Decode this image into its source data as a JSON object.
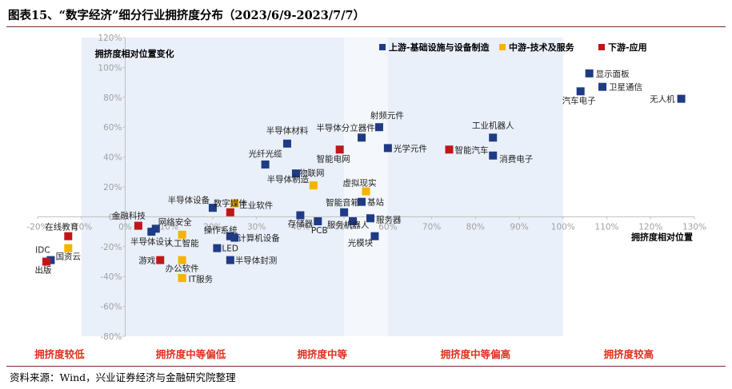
{
  "figure": {
    "title": "图表15、“数字经济”细分行业拥挤度分布（2023/6/9-2023/7/7）",
    "source": "资料来源：Wind，兴业证券经济与金融研究院整理"
  },
  "chart_data": {
    "type": "scatter",
    "title": "图表15、“数字经济”细分行业拥挤度分布（2023/6/9-2023/7/7）",
    "annotation": "拥挤度相对位置变化",
    "xlabel": "拥挤度相对位置",
    "ylabel": "",
    "xlim": [
      -20,
      130
    ],
    "ylim": [
      -80,
      120
    ],
    "x_ticks": [
      "-20%",
      "-10%",
      "0%",
      "10%",
      "20%",
      "30%",
      "40%",
      "50%",
      "60%",
      "70%",
      "80%",
      "90%",
      "100%",
      "110%",
      "120%",
      "130%"
    ],
    "y_ticks": [
      "-80%",
      "-60%",
      "-40%",
      "-20%",
      "0%",
      "20%",
      "40%",
      "60%",
      "80%",
      "100%",
      "120%"
    ],
    "grid": false,
    "legend_position": "top-right",
    "zones": [
      "拥挤度较低",
      "拥挤度中等偏低",
      "拥挤度中等",
      "拥挤度中等偏高",
      "拥挤度较高"
    ],
    "series": [
      {
        "name": "上游-基础设施与设备制造",
        "color": "#1f3b85",
        "points": [
          {
            "label": "显示面板",
            "x": 106,
            "y": 96
          },
          {
            "label": "卫星通信",
            "x": 109,
            "y": 87
          },
          {
            "label": "汽车电子",
            "x": 104,
            "y": 84
          },
          {
            "label": "无人机",
            "x": 127,
            "y": 79
          },
          {
            "label": "工业机器人",
            "x": 84,
            "y": 53
          },
          {
            "label": "消费电子",
            "x": 84,
            "y": 41
          },
          {
            "label": "射频元件",
            "x": 58,
            "y": 60
          },
          {
            "label": "半导体分立器件",
            "x": 54,
            "y": 53
          },
          {
            "label": "光学元件",
            "x": 60,
            "y": 46
          },
          {
            "label": "半导体材料",
            "x": 37,
            "y": 49
          },
          {
            "label": "光纤光缆",
            "x": 32,
            "y": 35
          },
          {
            "label": "半导体制造",
            "x": 39,
            "y": 29
          },
          {
            "label": "半导体设备",
            "x": 20,
            "y": 6
          },
          {
            "label": "存储器",
            "x": 40,
            "y": 1
          },
          {
            "label": "PCB",
            "x": 44,
            "y": -3
          },
          {
            "label": "智能音箱",
            "x": 50,
            "y": 3
          },
          {
            "label": "基站",
            "x": 54,
            "y": 10
          },
          {
            "label": "服务器",
            "x": 56,
            "y": -1
          },
          {
            "label": "服务机器人",
            "x": 52,
            "y": -3
          },
          {
            "label": "光模块",
            "x": 57,
            "y": -13
          },
          {
            "label": "操作系统",
            "x": 24,
            "y": -13
          },
          {
            "label": "计算机设备",
            "x": 25,
            "y": -14
          },
          {
            "label": "LED",
            "x": 21,
            "y": -21
          },
          {
            "label": "半导体封测",
            "x": 24,
            "y": -29
          },
          {
            "label": "网络安全",
            "x": 7,
            "y": -8
          },
          {
            "label": "半导体设计",
            "x": 6,
            "y": -10
          },
          {
            "label": "IDC",
            "x": -17,
            "y": -29
          }
        ]
      },
      {
        "name": "中游-技术及服务",
        "color": "#f5b400",
        "points": [
          {
            "label": "工业软件",
            "x": 25,
            "y": 9
          },
          {
            "label": "物联网",
            "x": 43,
            "y": 21
          },
          {
            "label": "虚拟现实",
            "x": 55,
            "y": 17
          },
          {
            "label": "人工智能",
            "x": 13,
            "y": -12
          },
          {
            "label": "办公软件",
            "x": 13,
            "y": -29
          },
          {
            "label": "IT服务",
            "x": 13,
            "y": -41
          },
          {
            "label": "国资云",
            "x": -13,
            "y": -21
          }
        ]
      },
      {
        "name": "下游-应用",
        "color": "#c0161a",
        "points": [
          {
            "label": "智能电网",
            "x": 49,
            "y": 45
          },
          {
            "label": "智能汽车",
            "x": 74,
            "y": 45
          },
          {
            "label": "数字媒体",
            "x": 24,
            "y": 3
          },
          {
            "label": "金融科技",
            "x": 3,
            "y": -6
          },
          {
            "label": "在线教育",
            "x": -13,
            "y": -13
          },
          {
            "label": "游戏",
            "x": 8,
            "y": -29
          },
          {
            "label": "出版",
            "x": -18,
            "y": -30
          }
        ]
      }
    ]
  }
}
